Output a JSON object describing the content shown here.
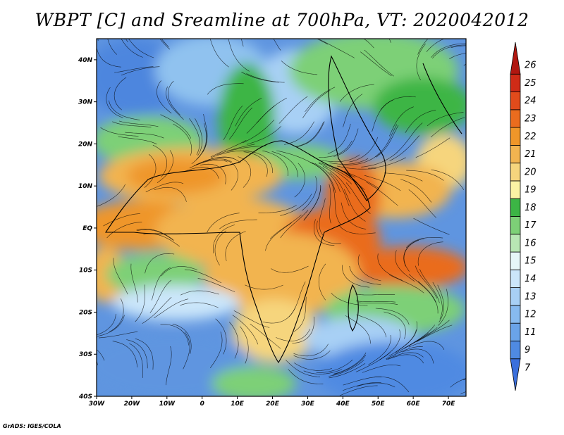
{
  "title": "WBPT [C] and Sreamline at 700hPa, VT: 2020042012",
  "credit": "GrADS: IGES/COLA",
  "map": {
    "lon_range": [
      -30,
      75
    ],
    "lat_range": [
      -40,
      45
    ],
    "x_ticks": [
      {
        "value": -30,
        "label": "30W"
      },
      {
        "value": -20,
        "label": "20W"
      },
      {
        "value": -10,
        "label": "10W"
      },
      {
        "value": 0,
        "label": "0"
      },
      {
        "value": 10,
        "label": "10E"
      },
      {
        "value": 20,
        "label": "20E"
      },
      {
        "value": 30,
        "label": "30E"
      },
      {
        "value": 40,
        "label": "40E"
      },
      {
        "value": 50,
        "label": "50E"
      },
      {
        "value": 60,
        "label": "60E"
      },
      {
        "value": 70,
        "label": "70E"
      }
    ],
    "y_ticks": [
      {
        "value": 40,
        "label": "40N"
      },
      {
        "value": 30,
        "label": "30N"
      },
      {
        "value": 20,
        "label": "20N"
      },
      {
        "value": 10,
        "label": "10N"
      },
      {
        "value": 0,
        "label": "EQ"
      },
      {
        "value": -10,
        "label": "10S"
      },
      {
        "value": -20,
        "label": "20S"
      },
      {
        "value": -30,
        "label": "30S"
      },
      {
        "value": -40,
        "label": "40S"
      }
    ]
  },
  "colorbar": {
    "labels": [
      "7",
      "9",
      "11",
      "12",
      "13",
      "14",
      "15",
      "16",
      "17",
      "18",
      "19",
      "20",
      "21",
      "22",
      "23",
      "24",
      "25",
      "26"
    ],
    "colors": [
      "#3a6fdc",
      "#4f8ae2",
      "#6aa3e8",
      "#87baef",
      "#a8d0f5",
      "#cbe6fa",
      "#e6f6f8",
      "#b8e6b4",
      "#7dd077",
      "#3cb545",
      "#fbf3a4",
      "#f6d57d",
      "#f2b450",
      "#ef9629",
      "#ea6c1e",
      "#e14b1b",
      "#cf2b17",
      "#b01710"
    ]
  }
}
